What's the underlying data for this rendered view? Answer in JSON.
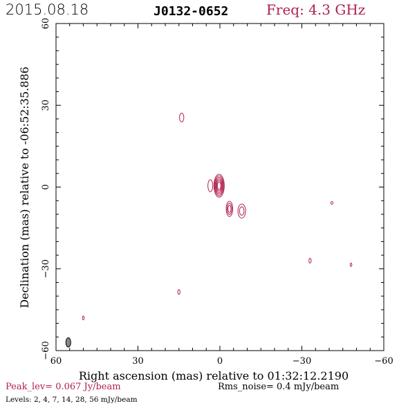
{
  "header": {
    "date": "2015.08.18",
    "source": "J0132-0652",
    "freq": "Freq: 4.3 GHz"
  },
  "footer": {
    "peak": "Peak_lev=  0.067 Jy/beam",
    "rms": "Rms_noise=  0.4 mJy/beam",
    "levels": "Levels:   2,    4,    7,   14,   28,   56  mJy/beam"
  },
  "colors": {
    "contour": "#b0204d",
    "beam": "#888888",
    "axis": "#000000"
  },
  "chart_data": {
    "type": "contour",
    "xlabel": "Right ascension (mas) relative to 01:32:12.2190",
    "ylabel": "Declination (mas) relative to -06:52:35.886",
    "xlim": [
      60,
      -60
    ],
    "ylim": [
      -60,
      60
    ],
    "xticks": [
      60,
      30,
      0,
      -30,
      -60
    ],
    "yticks": [
      -60,
      -30,
      0,
      30,
      60
    ],
    "xtick_labels": [
      "60",
      "30",
      "0",
      "−30",
      "−60"
    ],
    "ytick_labels": [
      "−60",
      "−30",
      "0",
      "30",
      "60"
    ],
    "levels_mJy": [
      2,
      4,
      7,
      14,
      28,
      56
    ],
    "contours": [
      {
        "x": 0.3,
        "y": 0.5,
        "rx": 1.9,
        "ry": 4.2,
        "n": 6
      },
      {
        "x": 3.5,
        "y": 0.5,
        "rx": 0.9,
        "ry": 2.2,
        "n": 1
      },
      {
        "x": -3.5,
        "y": -8.0,
        "rx": 1.2,
        "ry": 2.8,
        "n": 3
      },
      {
        "x": -8.0,
        "y": -8.8,
        "rx": 1.4,
        "ry": 2.6,
        "n": 2
      },
      {
        "x": 14.0,
        "y": 25.5,
        "rx": 0.8,
        "ry": 1.6,
        "n": 1
      },
      {
        "x": -41.0,
        "y": -5.8,
        "rx": 0.4,
        "ry": 0.5,
        "n": 1
      },
      {
        "x": -33.0,
        "y": -27.0,
        "rx": 0.4,
        "ry": 0.9,
        "n": 1
      },
      {
        "x": -48.0,
        "y": -28.5,
        "rx": 0.3,
        "ry": 0.6,
        "n": 1
      },
      {
        "x": 15.0,
        "y": -38.5,
        "rx": 0.4,
        "ry": 0.9,
        "n": 1
      },
      {
        "x": 50.0,
        "y": -48.0,
        "rx": 0.3,
        "ry": 0.7,
        "n": 1
      }
    ],
    "beam": {
      "x": 55.5,
      "y": -57.0,
      "major": 1.7,
      "minor": 0.9
    }
  }
}
